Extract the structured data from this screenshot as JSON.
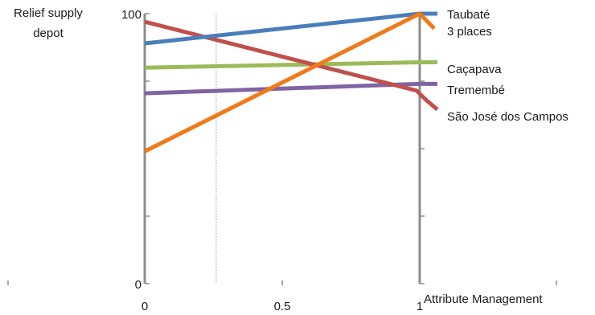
{
  "chart_data": {
    "type": "line",
    "title": "",
    "ylabel": [
      "Relief supply",
      "depot"
    ],
    "xlabel": "Attribute Management",
    "xlim": [
      0,
      1
    ],
    "ylim": [
      0,
      100
    ],
    "x_ticks": [
      {
        "value": 0,
        "label": "0"
      },
      {
        "value": 0.5,
        "label": "0.5"
      },
      {
        "value": 1,
        "label": "1"
      }
    ],
    "y_ticks": [
      {
        "value": 0,
        "label": "0"
      },
      {
        "value": 100,
        "label": "100"
      }
    ],
    "reference_line_x": 0.26,
    "series": [
      {
        "name": "Taubaté",
        "color": "#4a7ebb",
        "x": [
          0,
          1
        ],
        "y": [
          89,
          100
        ]
      },
      {
        "name": "Caçapava",
        "color": "#9bbb59",
        "x": [
          0,
          1
        ],
        "y": [
          80,
          82
        ]
      },
      {
        "name": "Tremembé",
        "color": "#8064a2",
        "x": [
          0,
          1
        ],
        "y": [
          70.5,
          74
        ]
      },
      {
        "name": "São José dos Campos",
        "color": "#c0504d",
        "x": [
          0,
          1
        ],
        "y": [
          97,
          70
        ]
      },
      {
        "name": "3 places",
        "color": "#f07a18",
        "x": [
          0,
          1
        ],
        "y": [
          49,
          100
        ]
      }
    ],
    "end_labels": [
      {
        "series": "Taubaté",
        "text": "Taubaté"
      },
      {
        "series": "3 places",
        "text": "3 places"
      },
      {
        "series": "Caçapava",
        "text": "Caçapava"
      },
      {
        "series": "Tremembé",
        "text": "Tremembé"
      },
      {
        "series": "São José dos Campos",
        "text": "São José dos Campos"
      }
    ]
  }
}
